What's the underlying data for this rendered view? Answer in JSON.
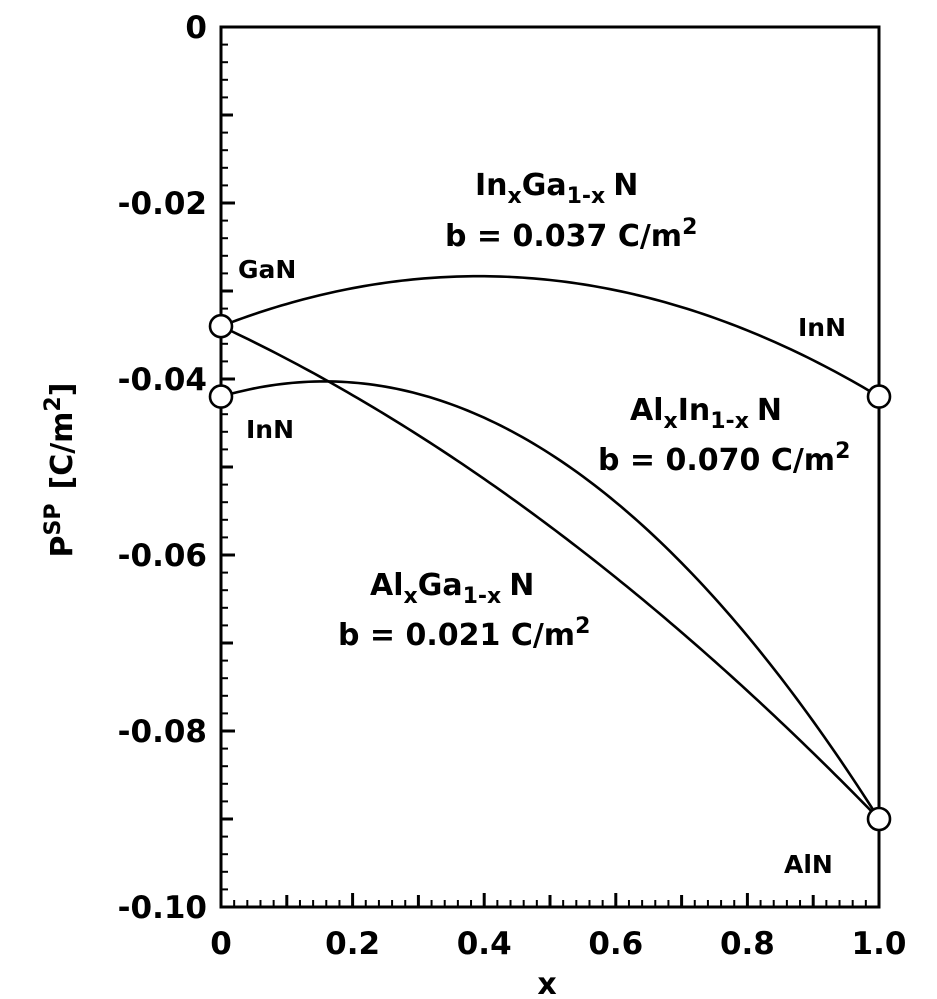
{
  "chart_data": {
    "type": "line",
    "xlabel": "x",
    "ylabel": {
      "main": "P",
      "sup": "SP",
      "unit_prefix": "[C/m",
      "unit_sup": "2",
      "unit_suffix": "]"
    },
    "xlim": [
      0,
      1.0
    ],
    "ylim": [
      -0.1,
      0
    ],
    "x_ticks": [
      0,
      0.2,
      0.4,
      0.6,
      0.8,
      1.0
    ],
    "x_tick_labels": [
      "0",
      "0.2",
      "0.4",
      "0.6",
      "0.8",
      "1.0"
    ],
    "y_ticks": [
      0,
      -0.02,
      -0.04,
      -0.06,
      -0.08,
      -0.1
    ],
    "y_tick_labels": [
      "0",
      "-0.02",
      "-0.04",
      "-0.06",
      "-0.08",
      "-0.10"
    ],
    "grid": false,
    "series": [
      {
        "formula": {
          "a": "In",
          "a_sub": "x",
          "b": "Ga",
          "b_sub": "1-x",
          "c": "N"
        },
        "bowing": {
          "prefix": "b = 0.037 C/m",
          "sup": "2"
        },
        "endpoints": {
          "x0": -0.034,
          "x1": -0.042
        },
        "b": 0.037,
        "start_label": "GaN",
        "end_label": "InN"
      },
      {
        "formula": {
          "a": "Al",
          "a_sub": "x",
          "b": "In",
          "b_sub": "1-x",
          "c": "N"
        },
        "bowing": {
          "prefix": "b = 0.070 C/m",
          "sup": "2"
        },
        "endpoints": {
          "x0": -0.042,
          "x1": -0.09
        },
        "b": 0.07,
        "start_label": "InN",
        "end_label": "AlN"
      },
      {
        "formula": {
          "a": "Al",
          "a_sub": "x",
          "b": "Ga",
          "b_sub": "1-x",
          "c": "N"
        },
        "bowing": {
          "prefix": "b = 0.021 C/m",
          "sup": "2"
        },
        "endpoints": {
          "x0": -0.034,
          "x1": -0.09
        },
        "b": 0.021,
        "start_label": null,
        "end_label": null
      }
    ],
    "markers": [
      {
        "x": 0,
        "y": -0.034
      },
      {
        "x": 0,
        "y": -0.042
      },
      {
        "x": 1.0,
        "y": -0.042
      },
      {
        "x": 1.0,
        "y": -0.09
      }
    ]
  }
}
